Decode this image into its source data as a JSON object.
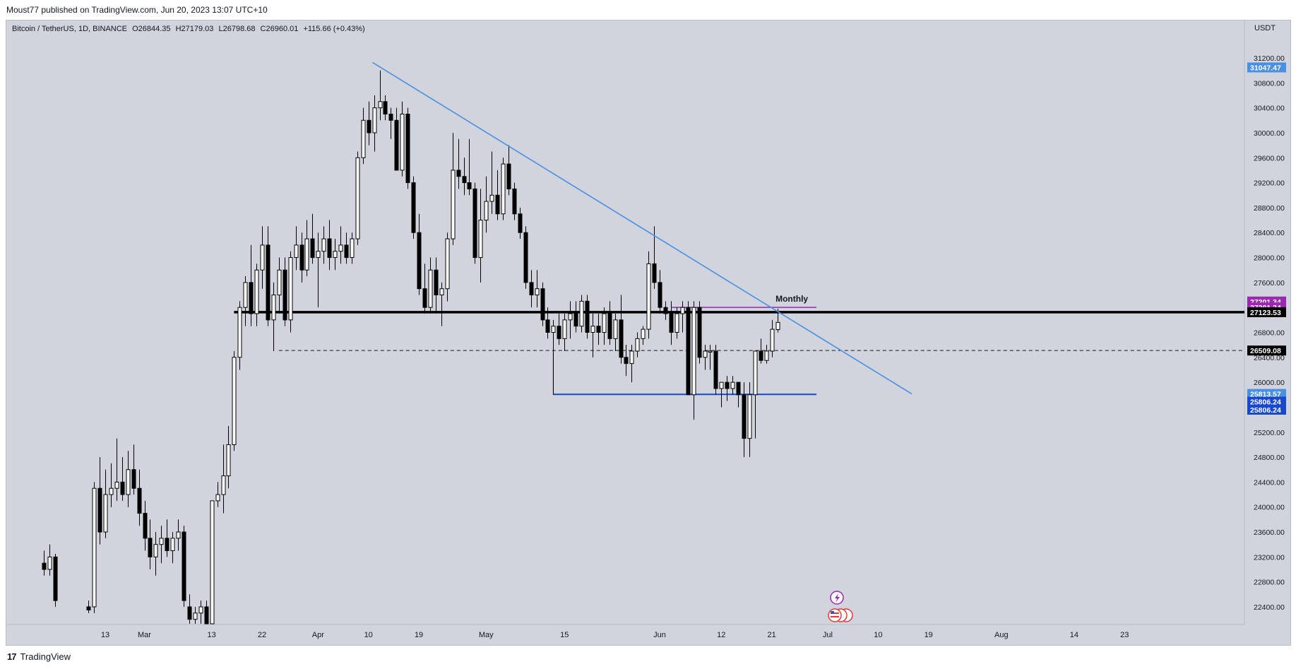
{
  "header": {
    "published": "Moust77 published on TradingView.com, Jun 20, 2023 13:07 UTC+10"
  },
  "legend": {
    "symbol": "Bitcoin / TetherUS, 1D, BINANCE",
    "open": "O26844.35",
    "high": "H27179.03",
    "low": "L26798.68",
    "close": "C26960.01",
    "change": "+115.66 (+0.43%)"
  },
  "axis": {
    "currency": "USDT",
    "price_ticks": [
      "31200.00",
      "30800.00",
      "30400.00",
      "30000.00",
      "29600.00",
      "29200.00",
      "28800.00",
      "28400.00",
      "28000.00",
      "27600.00",
      "27200.00",
      "26800.00",
      "26400.00",
      "26000.00",
      "25600.00",
      "25200.00",
      "24800.00",
      "24400.00",
      "24000.00",
      "23600.00",
      "23200.00",
      "22800.00",
      "22400.00"
    ],
    "time_labels": [
      {
        "label": "13",
        "day": -7
      },
      {
        "label": "Mar",
        "day": 0
      },
      {
        "label": "13",
        "day": 12
      },
      {
        "label": "22",
        "day": 21
      },
      {
        "label": "Apr",
        "day": 31
      },
      {
        "label": "10",
        "day": 40
      },
      {
        "label": "19",
        "day": 49
      },
      {
        "label": "May",
        "day": 61
      },
      {
        "label": "15",
        "day": 75
      },
      {
        "label": "Jun",
        "day": 92
      },
      {
        "label": "12",
        "day": 103
      },
      {
        "label": "21",
        "day": 112
      },
      {
        "label": "Jul",
        "day": 122
      },
      {
        "label": "10",
        "day": 131
      },
      {
        "label": "19",
        "day": 140
      },
      {
        "label": "Aug",
        "day": 153
      },
      {
        "label": "14",
        "day": 166
      },
      {
        "label": "23",
        "day": 175
      }
    ]
  },
  "price_labels": [
    {
      "value": "31047.47",
      "price": 31047.47,
      "bg": "#4a90e2",
      "color": "#ffffff"
    },
    {
      "value": "27201.34",
      "price": 27295,
      "bg": "#9c27b0",
      "color": "#ffffff"
    },
    {
      "value": "27201.34",
      "price": 27200,
      "bg": "#9c27b0",
      "color": "#ffffff"
    },
    {
      "value": "27123.53",
      "price": 27123.53,
      "bg": "#000000",
      "color": "#ffffff"
    },
    {
      "value": "26509.08",
      "price": 26509.08,
      "bg": "#000000",
      "color": "#ffffff"
    },
    {
      "value": "25813.57",
      "price": 25813.57,
      "bg": "#4a90e2",
      "color": "#ffffff"
    },
    {
      "value": "25806.24",
      "price": 25690,
      "bg": "#1848cc",
      "color": "#ffffff"
    },
    {
      "value": "25806.24",
      "price": 25560,
      "bg": "#1848cc",
      "color": "#ffffff"
    }
  ],
  "annotations": {
    "monthly": "Monthly"
  },
  "footer": {
    "brand": "TradingView",
    "logo": "17"
  },
  "colors": {
    "chart_bg": "#d1d4dc",
    "trendline": "#4a90e2",
    "support": "#1848cc",
    "monthly": "#9c27b0",
    "horizontal": "#000000"
  },
  "chart_data": {
    "type": "candlestick",
    "title": "Bitcoin / TetherUS, 1D, BINANCE",
    "ylabel": "USDT",
    "ylim": [
      22200,
      31700
    ],
    "x_unit": "days since Mar 1, 2023",
    "candles": [
      {
        "d": -18,
        "o": 23100,
        "h": 23300,
        "l": 22900,
        "c": 23000
      },
      {
        "d": -17,
        "o": 23000,
        "h": 23400,
        "l": 22900,
        "c": 23200
      },
      {
        "d": -16,
        "o": 23200,
        "h": 23250,
        "l": 22400,
        "c": 22500
      },
      {
        "d": -10,
        "o": 22400,
        "h": 22500,
        "l": 22300,
        "c": 22350
      },
      {
        "d": -9,
        "o": 22400,
        "h": 24400,
        "l": 22300,
        "c": 24300
      },
      {
        "d": -8,
        "o": 24300,
        "h": 24800,
        "l": 23400,
        "c": 23600
      },
      {
        "d": -7,
        "o": 23600,
        "h": 24600,
        "l": 23500,
        "c": 24200
      },
      {
        "d": -6,
        "o": 24200,
        "h": 24700,
        "l": 24000,
        "c": 24300
      },
      {
        "d": -5,
        "o": 24300,
        "h": 25100,
        "l": 24100,
        "c": 24400
      },
      {
        "d": -4,
        "o": 24400,
        "h": 24800,
        "l": 24100,
        "c": 24200
      },
      {
        "d": -3,
        "o": 24200,
        "h": 24900,
        "l": 24000,
        "c": 24600
      },
      {
        "d": -2,
        "o": 24600,
        "h": 25000,
        "l": 24200,
        "c": 24300
      },
      {
        "d": -1,
        "o": 24300,
        "h": 24600,
        "l": 23700,
        "c": 23900
      },
      {
        "d": 0,
        "o": 23900,
        "h": 24100,
        "l": 23300,
        "c": 23500
      },
      {
        "d": 1,
        "o": 23500,
        "h": 23800,
        "l": 23000,
        "c": 23200
      },
      {
        "d": 2,
        "o": 23200,
        "h": 23600,
        "l": 22900,
        "c": 23400
      },
      {
        "d": 3,
        "o": 23400,
        "h": 23700,
        "l": 23100,
        "c": 23500
      },
      {
        "d": 4,
        "o": 23500,
        "h": 23800,
        "l": 23200,
        "c": 23300
      },
      {
        "d": 5,
        "o": 23300,
        "h": 23600,
        "l": 23100,
        "c": 23500
      },
      {
        "d": 6,
        "o": 23500,
        "h": 23800,
        "l": 23300,
        "c": 23600
      },
      {
        "d": 7,
        "o": 23600,
        "h": 23700,
        "l": 22400,
        "c": 22500
      },
      {
        "d": 8,
        "o": 22400,
        "h": 22600,
        "l": 22000,
        "c": 22200
      },
      {
        "d": 9,
        "o": 22200,
        "h": 22400,
        "l": 21900,
        "c": 22300
      },
      {
        "d": 10,
        "o": 22300,
        "h": 22500,
        "l": 22000,
        "c": 22400
      },
      {
        "d": 11,
        "o": 22400,
        "h": 22500,
        "l": 22000,
        "c": 22100
      },
      {
        "d": 12,
        "o": 22100,
        "h": 24100,
        "l": 21800,
        "c": 24100
      },
      {
        "d": 13,
        "o": 24100,
        "h": 24400,
        "l": 24000,
        "c": 24200
      },
      {
        "d": 14,
        "o": 24200,
        "h": 25000,
        "l": 23900,
        "c": 24500
      },
      {
        "d": 15,
        "o": 24500,
        "h": 25300,
        "l": 24300,
        "c": 25000
      },
      {
        "d": 16,
        "o": 25000,
        "h": 26500,
        "l": 24900,
        "c": 26400
      },
      {
        "d": 17,
        "o": 26400,
        "h": 27300,
        "l": 26200,
        "c": 27200
      },
      {
        "d": 18,
        "o": 27200,
        "h": 27700,
        "l": 26900,
        "c": 27600
      },
      {
        "d": 19,
        "o": 27600,
        "h": 28200,
        "l": 26900,
        "c": 27100
      },
      {
        "d": 20,
        "o": 27100,
        "h": 27900,
        "l": 26900,
        "c": 27800
      },
      {
        "d": 21,
        "o": 27800,
        "h": 28500,
        "l": 27500,
        "c": 28200
      },
      {
        "d": 22,
        "o": 28200,
        "h": 28500,
        "l": 26900,
        "c": 27000
      },
      {
        "d": 23,
        "o": 27000,
        "h": 27600,
        "l": 26500,
        "c": 27400
      },
      {
        "d": 24,
        "o": 27400,
        "h": 28000,
        "l": 27100,
        "c": 27800
      },
      {
        "d": 25,
        "o": 27800,
        "h": 28000,
        "l": 26900,
        "c": 27000
      },
      {
        "d": 26,
        "o": 27000,
        "h": 28100,
        "l": 26800,
        "c": 28000
      },
      {
        "d": 27,
        "o": 28000,
        "h": 28500,
        "l": 27800,
        "c": 28200
      },
      {
        "d": 28,
        "o": 28200,
        "h": 28400,
        "l": 27600,
        "c": 27800
      },
      {
        "d": 29,
        "o": 27800,
        "h": 28600,
        "l": 27700,
        "c": 28300
      },
      {
        "d": 30,
        "o": 28300,
        "h": 28700,
        "l": 27900,
        "c": 28000
      },
      {
        "d": 31,
        "o": 28000,
        "h": 28400,
        "l": 27200,
        "c": 28100
      },
      {
        "d": 32,
        "o": 28100,
        "h": 28500,
        "l": 27900,
        "c": 28300
      },
      {
        "d": 33,
        "o": 28300,
        "h": 28600,
        "l": 27800,
        "c": 28000
      },
      {
        "d": 34,
        "o": 28000,
        "h": 28300,
        "l": 27800,
        "c": 28100
      },
      {
        "d": 35,
        "o": 28100,
        "h": 28500,
        "l": 27900,
        "c": 28200
      },
      {
        "d": 36,
        "o": 28200,
        "h": 28400,
        "l": 27900,
        "c": 28000
      },
      {
        "d": 37,
        "o": 28000,
        "h": 28400,
        "l": 27900,
        "c": 28300
      },
      {
        "d": 38,
        "o": 28300,
        "h": 29700,
        "l": 28200,
        "c": 29600
      },
      {
        "d": 39,
        "o": 29600,
        "h": 30400,
        "l": 29500,
        "c": 30200
      },
      {
        "d": 40,
        "o": 30200,
        "h": 30500,
        "l": 29800,
        "c": 30000
      },
      {
        "d": 41,
        "o": 30000,
        "h": 30600,
        "l": 29700,
        "c": 30400
      },
      {
        "d": 42,
        "o": 30400,
        "h": 31000,
        "l": 30200,
        "c": 30500
      },
      {
        "d": 43,
        "o": 30500,
        "h": 30600,
        "l": 30200,
        "c": 30300
      },
      {
        "d": 44,
        "o": 30300,
        "h": 30400,
        "l": 29900,
        "c": 30200
      },
      {
        "d": 45,
        "o": 30200,
        "h": 30400,
        "l": 29400,
        "c": 29400
      },
      {
        "d": 46,
        "o": 29400,
        "h": 30500,
        "l": 29300,
        "c": 30300
      },
      {
        "d": 47,
        "o": 30300,
        "h": 30400,
        "l": 29100,
        "c": 29200
      },
      {
        "d": 48,
        "o": 29200,
        "h": 29300,
        "l": 28300,
        "c": 28400
      },
      {
        "d": 49,
        "o": 28400,
        "h": 28700,
        "l": 27400,
        "c": 27500
      },
      {
        "d": 50,
        "o": 27500,
        "h": 27900,
        "l": 27100,
        "c": 27200
      },
      {
        "d": 51,
        "o": 27200,
        "h": 28000,
        "l": 27100,
        "c": 27800
      },
      {
        "d": 52,
        "o": 27800,
        "h": 28000,
        "l": 27100,
        "c": 27400
      },
      {
        "d": 53,
        "o": 27400,
        "h": 27600,
        "l": 26900,
        "c": 27500
      },
      {
        "d": 54,
        "o": 27500,
        "h": 28400,
        "l": 27300,
        "c": 28300
      },
      {
        "d": 55,
        "o": 28300,
        "h": 30000,
        "l": 28200,
        "c": 29400
      },
      {
        "d": 56,
        "o": 29400,
        "h": 29900,
        "l": 29100,
        "c": 29300
      },
      {
        "d": 57,
        "o": 29300,
        "h": 29600,
        "l": 29000,
        "c": 29200
      },
      {
        "d": 58,
        "o": 29200,
        "h": 29900,
        "l": 29000,
        "c": 29100
      },
      {
        "d": 59,
        "o": 29100,
        "h": 29200,
        "l": 27900,
        "c": 28000
      },
      {
        "d": 60,
        "o": 28000,
        "h": 29100,
        "l": 27600,
        "c": 28600
      },
      {
        "d": 61,
        "o": 28600,
        "h": 29300,
        "l": 28400,
        "c": 28900
      },
      {
        "d": 62,
        "o": 28900,
        "h": 29700,
        "l": 28700,
        "c": 29000
      },
      {
        "d": 63,
        "o": 29000,
        "h": 29400,
        "l": 28600,
        "c": 28700
      },
      {
        "d": 64,
        "o": 28700,
        "h": 29600,
        "l": 28600,
        "c": 29500
      },
      {
        "d": 65,
        "o": 29500,
        "h": 29800,
        "l": 29000,
        "c": 29100
      },
      {
        "d": 66,
        "o": 29100,
        "h": 29200,
        "l": 28600,
        "c": 28700
      },
      {
        "d": 67,
        "o": 28700,
        "h": 28800,
        "l": 28300,
        "c": 28400
      },
      {
        "d": 68,
        "o": 28400,
        "h": 28500,
        "l": 27500,
        "c": 27600
      },
      {
        "d": 69,
        "o": 27600,
        "h": 27800,
        "l": 27200,
        "c": 27400
      },
      {
        "d": 70,
        "o": 27400,
        "h": 27800,
        "l": 27200,
        "c": 27500
      },
      {
        "d": 71,
        "o": 27500,
        "h": 27600,
        "l": 26900,
        "c": 27000
      },
      {
        "d": 72,
        "o": 27000,
        "h": 27200,
        "l": 26700,
        "c": 26800
      },
      {
        "d": 73,
        "o": 26800,
        "h": 27000,
        "l": 25800,
        "c": 26900
      },
      {
        "d": 74,
        "o": 26900,
        "h": 27100,
        "l": 26600,
        "c": 26700
      },
      {
        "d": 75,
        "o": 26700,
        "h": 27100,
        "l": 26500,
        "c": 27000
      },
      {
        "d": 76,
        "o": 27000,
        "h": 27300,
        "l": 26700,
        "c": 27100
      },
      {
        "d": 77,
        "o": 27100,
        "h": 27300,
        "l": 26800,
        "c": 26900
      },
      {
        "d": 78,
        "o": 26900,
        "h": 27400,
        "l": 26800,
        "c": 27300
      },
      {
        "d": 79,
        "o": 27300,
        "h": 27400,
        "l": 26700,
        "c": 26800
      },
      {
        "d": 80,
        "o": 26800,
        "h": 27100,
        "l": 26400,
        "c": 26900
      },
      {
        "d": 81,
        "o": 26900,
        "h": 27100,
        "l": 26600,
        "c": 26800
      },
      {
        "d": 82,
        "o": 26800,
        "h": 27200,
        "l": 26600,
        "c": 27100
      },
      {
        "d": 83,
        "o": 27100,
        "h": 27300,
        "l": 26600,
        "c": 26700
      },
      {
        "d": 84,
        "o": 26700,
        "h": 27100,
        "l": 26500,
        "c": 27000
      },
      {
        "d": 85,
        "o": 27000,
        "h": 27400,
        "l": 26300,
        "c": 26400
      },
      {
        "d": 86,
        "o": 26400,
        "h": 26600,
        "l": 26100,
        "c": 26300
      },
      {
        "d": 87,
        "o": 26300,
        "h": 26600,
        "l": 26000,
        "c": 26500
      },
      {
        "d": 88,
        "o": 26500,
        "h": 26800,
        "l": 26400,
        "c": 26700
      },
      {
        "d": 89,
        "o": 26700,
        "h": 26900,
        "l": 26600,
        "c": 26850
      },
      {
        "d": 90,
        "o": 26850,
        "h": 28100,
        "l": 26700,
        "c": 27900
      },
      {
        "d": 91,
        "o": 27900,
        "h": 28500,
        "l": 27500,
        "c": 27600
      },
      {
        "d": 92,
        "o": 27600,
        "h": 27800,
        "l": 27100,
        "c": 27200
      },
      {
        "d": 93,
        "o": 27200,
        "h": 27300,
        "l": 27000,
        "c": 27100
      },
      {
        "d": 94,
        "o": 27100,
        "h": 27300,
        "l": 26600,
        "c": 26800
      },
      {
        "d": 95,
        "o": 26800,
        "h": 27200,
        "l": 26700,
        "c": 27100
      },
      {
        "d": 96,
        "o": 27100,
        "h": 27300,
        "l": 26800,
        "c": 27200
      },
      {
        "d": 97,
        "o": 27200,
        "h": 27300,
        "l": 25800,
        "c": 25800
      },
      {
        "d": 98,
        "o": 25800,
        "h": 27300,
        "l": 25400,
        "c": 27200
      },
      {
        "d": 99,
        "o": 27200,
        "h": 27300,
        "l": 26300,
        "c": 26400
      },
      {
        "d": 100,
        "o": 26400,
        "h": 26600,
        "l": 26200,
        "c": 26500
      },
      {
        "d": 101,
        "o": 26500,
        "h": 26600,
        "l": 26200,
        "c": 26500
      },
      {
        "d": 102,
        "o": 26500,
        "h": 26600,
        "l": 25800,
        "c": 25900
      },
      {
        "d": 103,
        "o": 25900,
        "h": 26000,
        "l": 25600,
        "c": 26000
      },
      {
        "d": 104,
        "o": 26000,
        "h": 26100,
        "l": 25700,
        "c": 25900
      },
      {
        "d": 105,
        "o": 25900,
        "h": 26100,
        "l": 25800,
        "c": 26000
      },
      {
        "d": 106,
        "o": 26000,
        "h": 26000,
        "l": 25600,
        "c": 25800
      },
      {
        "d": 107,
        "o": 25800,
        "h": 26000,
        "l": 24800,
        "c": 25100
      },
      {
        "d": 108,
        "o": 25100,
        "h": 26000,
        "l": 24800,
        "c": 25800
      },
      {
        "d": 109,
        "o": 25800,
        "h": 26500,
        "l": 25100,
        "c": 26500
      },
      {
        "d": 110,
        "o": 26500,
        "h": 26700,
        "l": 26300,
        "c": 26350
      },
      {
        "d": 111,
        "o": 26350,
        "h": 26600,
        "l": 26300,
        "c": 26500
      },
      {
        "d": 112,
        "o": 26500,
        "h": 27000,
        "l": 26400,
        "c": 26850
      },
      {
        "d": 113,
        "o": 26844.35,
        "h": 27179.03,
        "l": 26798.68,
        "c": 26960.01
      }
    ],
    "levels": [
      {
        "name": "Monthly",
        "price": 27201.34,
        "from_day": 94,
        "to_day": 120
      },
      {
        "price": 27123.53,
        "from_day": 16
      },
      {
        "price": 26509.08,
        "from_day": 24,
        "dashed": true
      },
      {
        "price": 25806.24,
        "from_day": 73,
        "to_day": 120,
        "tick_to": 26509.08
      }
    ],
    "trendline": {
      "points": [
        [
          42,
          31047.47
        ],
        [
          137,
          25813.57
        ]
      ]
    }
  }
}
